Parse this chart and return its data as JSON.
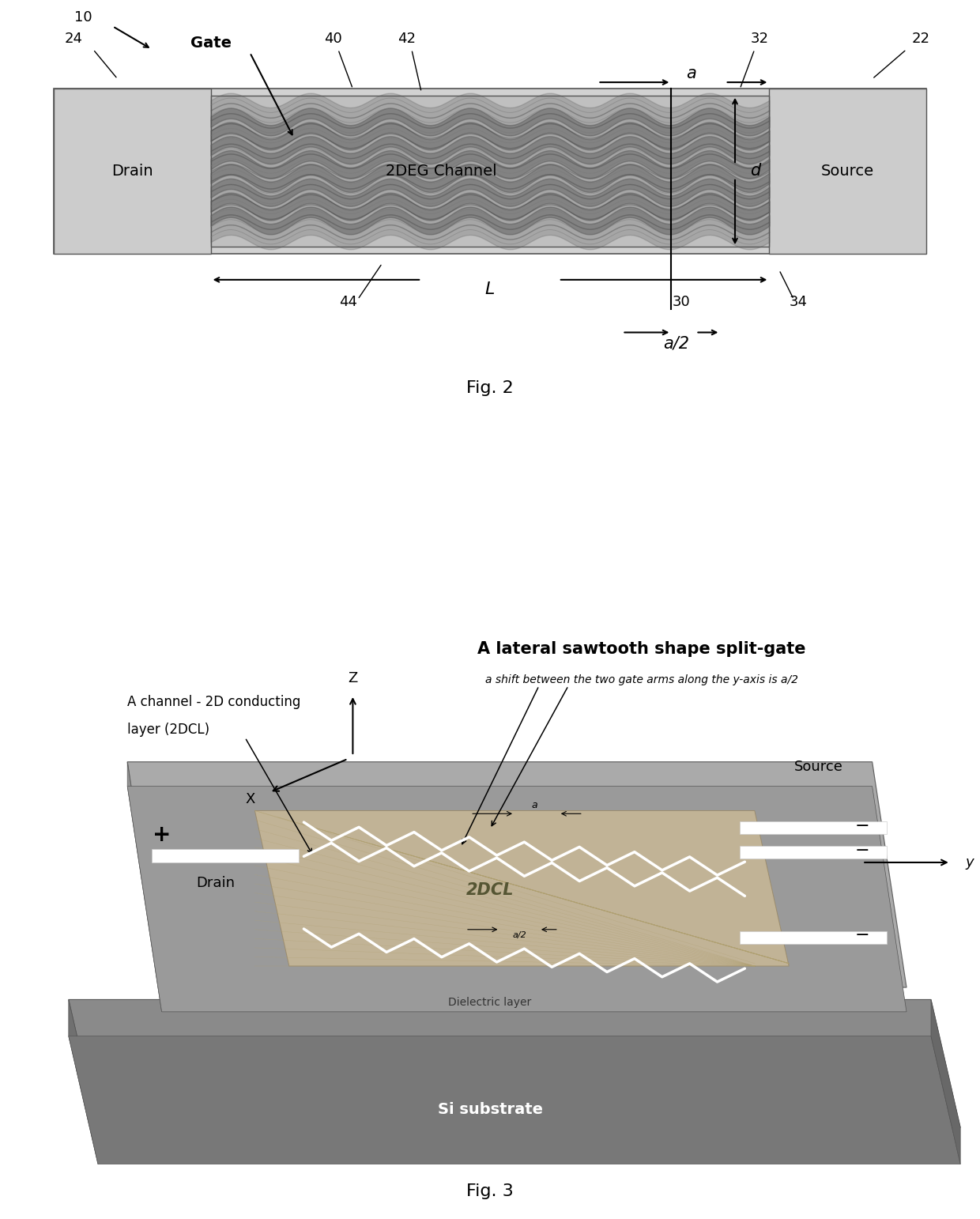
{
  "fig_width": 12.4,
  "fig_height": 15.42,
  "bg_color": "#ffffff",
  "fig2": {
    "title": "Fig. 2",
    "label_10": "10",
    "label_22": "22",
    "label_24": "24",
    "label_30": "30",
    "label_32": "32",
    "label_34": "34",
    "label_40": "40",
    "label_42": "42",
    "label_44": "44",
    "label_gate": "Gate",
    "label_drain": "Drain",
    "label_source": "Source",
    "label_channel": "2DEG Channel",
    "label_L": "L",
    "label_a": "a",
    "label_d": "d",
    "label_a2": "a/2",
    "outer_color": "#d0d0d0",
    "channel_color": "#b8b8b8",
    "wave_dark": "#606060",
    "wave_mid": "#808080"
  },
  "fig3": {
    "title": "Fig. 3",
    "label_title": "A lateral sawtooth shape split-gate",
    "label_subtitle": "a shift between the two gate arms along the y-axis is a/2",
    "label_channel_line1": "A channel - 2D conducting",
    "label_channel_line2": "layer (2DCL)",
    "label_2dcl": "2DCL",
    "label_drain": "Drain",
    "label_source": "Source",
    "label_substrate": "Si substrate",
    "label_dielectric": "Dielectric layer",
    "label_z": "Z",
    "label_x": "X",
    "label_y": "y",
    "substrate_top": "#888888",
    "substrate_side": "#707070",
    "device_top": "#aaaaaa",
    "device_side": "#909090",
    "channel_fill": "#c8b896"
  }
}
